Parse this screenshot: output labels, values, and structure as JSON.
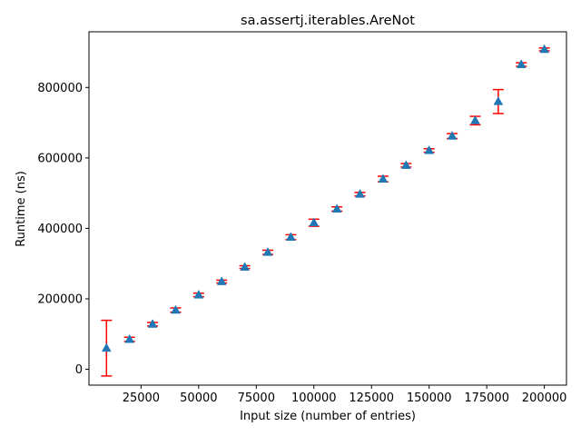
{
  "chart_data": {
    "type": "scatter",
    "title": "sa.assertj.iterables.AreNot",
    "xlabel": "Input size (number of entries)",
    "ylabel": "Runtime (ns)",
    "xlim": [
      2400,
      209600
    ],
    "ylim": [
      -45000,
      958000
    ],
    "x_ticks": [
      25000,
      50000,
      75000,
      100000,
      125000,
      150000,
      175000,
      200000
    ],
    "y_ticks": [
      0,
      200000,
      400000,
      600000,
      800000
    ],
    "x_tick_labels": [
      "25000",
      "50000",
      "75000",
      "100000",
      "125000",
      "150000",
      "175000",
      "200000"
    ],
    "y_tick_labels": [
      "0",
      "200000",
      "400000",
      "600000",
      "800000"
    ],
    "grid": false,
    "marker": "triangle",
    "marker_color": "#1f77b4",
    "errorbar_color": "#ff0000",
    "series": [
      {
        "x": [
          10000,
          20000,
          30000,
          40000,
          50000,
          60000,
          70000,
          80000,
          90000,
          100000,
          110000,
          120000,
          130000,
          140000,
          150000,
          160000,
          170000,
          180000,
          190000,
          200000
        ],
        "values": [
          60000,
          85000,
          128000,
          168000,
          211000,
          249000,
          290000,
          332000,
          375000,
          416000,
          455000,
          497000,
          540000,
          579000,
          621000,
          662000,
          706000,
          760000,
          865000,
          908000
        ],
        "err_low": [
          79000,
          6000,
          5000,
          6000,
          5000,
          4000,
          4000,
          6000,
          7000,
          10000,
          6000,
          5000,
          8000,
          5000,
          5000,
          7000,
          12000,
          34000,
          5000,
          4000
        ],
        "err_high": [
          79000,
          6000,
          5000,
          6000,
          5000,
          4000,
          4000,
          6000,
          7000,
          10000,
          6000,
          5000,
          8000,
          5000,
          5000,
          7000,
          12000,
          34000,
          5000,
          4000
        ]
      }
    ]
  }
}
